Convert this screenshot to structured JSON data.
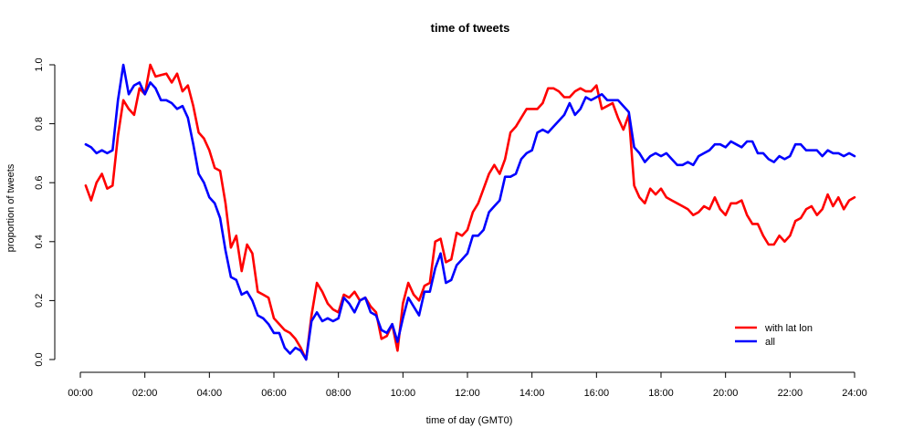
{
  "chart_data": {
    "type": "line",
    "title": "time of tweets",
    "xlabel": "time of day (GMT0)",
    "ylabel": "proportion of tweets",
    "xlim": [
      "00:00",
      "24:00"
    ],
    "ylim": [
      0,
      1
    ],
    "x_ticks": [
      "00:00",
      "02:00",
      "04:00",
      "06:00",
      "08:00",
      "10:00",
      "12:00",
      "14:00",
      "16:00",
      "18:00",
      "20:00",
      "22:00",
      "24:00"
    ],
    "y_ticks": [
      "0.0",
      "0.2",
      "0.4",
      "0.6",
      "0.8",
      "1.0"
    ],
    "grid": false,
    "legend_position": "bottom-right",
    "series": [
      {
        "name": "with lat lon",
        "color": "#ff0000",
        "points": [
          [
            "00:10",
            0.59
          ],
          [
            "00:20",
            0.54
          ],
          [
            "00:30",
            0.6
          ],
          [
            "00:40",
            0.63
          ],
          [
            "00:50",
            0.58
          ],
          [
            "01:00",
            0.59
          ],
          [
            "01:10",
            0.76
          ],
          [
            "01:20",
            0.88
          ],
          [
            "01:30",
            0.85
          ],
          [
            "01:40",
            0.83
          ],
          [
            "01:50",
            0.92
          ],
          [
            "02:00",
            0.9
          ],
          [
            "02:10",
            1.0
          ],
          [
            "02:20",
            0.96
          ],
          [
            "02:30",
            0.965
          ],
          [
            "02:40",
            0.97
          ],
          [
            "02:50",
            0.94
          ],
          [
            "03:00",
            0.97
          ],
          [
            "03:10",
            0.91
          ],
          [
            "03:20",
            0.93
          ],
          [
            "03:30",
            0.86
          ],
          [
            "03:40",
            0.77
          ],
          [
            "03:50",
            0.75
          ],
          [
            "04:00",
            0.71
          ],
          [
            "04:10",
            0.65
          ],
          [
            "04:20",
            0.64
          ],
          [
            "04:30",
            0.53
          ],
          [
            "04:40",
            0.38
          ],
          [
            "04:50",
            0.42
          ],
          [
            "05:00",
            0.3
          ],
          [
            "05:10",
            0.39
          ],
          [
            "05:20",
            0.36
          ],
          [
            "05:30",
            0.23
          ],
          [
            "05:40",
            0.22
          ],
          [
            "05:50",
            0.21
          ],
          [
            "06:00",
            0.14
          ],
          [
            "06:10",
            0.12
          ],
          [
            "06:20",
            0.1
          ],
          [
            "06:30",
            0.09
          ],
          [
            "06:40",
            0.07
          ],
          [
            "06:50",
            0.04
          ],
          [
            "07:00",
            0.0
          ],
          [
            "07:10",
            0.15
          ],
          [
            "07:20",
            0.26
          ],
          [
            "07:30",
            0.23
          ],
          [
            "07:40",
            0.19
          ],
          [
            "07:50",
            0.17
          ],
          [
            "08:00",
            0.16
          ],
          [
            "08:10",
            0.22
          ],
          [
            "08:20",
            0.21
          ],
          [
            "08:30",
            0.23
          ],
          [
            "08:40",
            0.2
          ],
          [
            "08:50",
            0.21
          ],
          [
            "09:00",
            0.18
          ],
          [
            "09:10",
            0.16
          ],
          [
            "09:20",
            0.07
          ],
          [
            "09:30",
            0.08
          ],
          [
            "09:40",
            0.12
          ],
          [
            "09:50",
            0.03
          ],
          [
            "10:00",
            0.19
          ],
          [
            "10:10",
            0.26
          ],
          [
            "10:20",
            0.22
          ],
          [
            "10:30",
            0.2
          ],
          [
            "10:40",
            0.25
          ],
          [
            "10:50",
            0.26
          ],
          [
            "11:00",
            0.4
          ],
          [
            "11:10",
            0.41
          ],
          [
            "11:20",
            0.33
          ],
          [
            "11:30",
            0.34
          ],
          [
            "11:40",
            0.43
          ],
          [
            "11:50",
            0.42
          ],
          [
            "12:00",
            0.44
          ],
          [
            "12:10",
            0.5
          ],
          [
            "12:20",
            0.53
          ],
          [
            "12:30",
            0.58
          ],
          [
            "12:40",
            0.63
          ],
          [
            "12:50",
            0.66
          ],
          [
            "13:00",
            0.63
          ],
          [
            "13:10",
            0.68
          ],
          [
            "13:20",
            0.77
          ],
          [
            "13:30",
            0.79
          ],
          [
            "13:40",
            0.82
          ],
          [
            "13:50",
            0.85
          ],
          [
            "14:00",
            0.85
          ],
          [
            "14:10",
            0.85
          ],
          [
            "14:20",
            0.87
          ],
          [
            "14:30",
            0.92
          ],
          [
            "14:40",
            0.92
          ],
          [
            "14:50",
            0.91
          ],
          [
            "15:00",
            0.89
          ],
          [
            "15:10",
            0.89
          ],
          [
            "15:20",
            0.91
          ],
          [
            "15:30",
            0.92
          ],
          [
            "15:40",
            0.91
          ],
          [
            "15:50",
            0.91
          ],
          [
            "16:00",
            0.93
          ],
          [
            "16:10",
            0.85
          ],
          [
            "16:20",
            0.86
          ],
          [
            "16:30",
            0.87
          ],
          [
            "16:40",
            0.82
          ],
          [
            "16:50",
            0.78
          ],
          [
            "17:00",
            0.83
          ],
          [
            "17:10",
            0.59
          ],
          [
            "17:20",
            0.55
          ],
          [
            "17:30",
            0.53
          ],
          [
            "17:40",
            0.58
          ],
          [
            "17:50",
            0.56
          ],
          [
            "18:00",
            0.58
          ],
          [
            "18:10",
            0.55
          ],
          [
            "18:20",
            0.54
          ],
          [
            "18:30",
            0.53
          ],
          [
            "18:40",
            0.52
          ],
          [
            "18:50",
            0.51
          ],
          [
            "19:00",
            0.49
          ],
          [
            "19:10",
            0.5
          ],
          [
            "19:20",
            0.52
          ],
          [
            "19:30",
            0.51
          ],
          [
            "19:40",
            0.55
          ],
          [
            "19:50",
            0.51
          ],
          [
            "20:00",
            0.49
          ],
          [
            "20:10",
            0.53
          ],
          [
            "20:20",
            0.53
          ],
          [
            "20:30",
            0.54
          ],
          [
            "20:40",
            0.49
          ],
          [
            "20:50",
            0.46
          ],
          [
            "21:00",
            0.46
          ],
          [
            "21:10",
            0.42
          ],
          [
            "21:20",
            0.39
          ],
          [
            "21:30",
            0.39
          ],
          [
            "21:40",
            0.42
          ],
          [
            "21:50",
            0.4
          ],
          [
            "22:00",
            0.42
          ],
          [
            "22:10",
            0.47
          ],
          [
            "22:20",
            0.48
          ],
          [
            "22:30",
            0.51
          ],
          [
            "22:40",
            0.52
          ],
          [
            "22:50",
            0.49
          ],
          [
            "23:00",
            0.51
          ],
          [
            "23:10",
            0.56
          ],
          [
            "23:20",
            0.52
          ],
          [
            "23:30",
            0.55
          ],
          [
            "23:40",
            0.51
          ],
          [
            "23:50",
            0.54
          ],
          [
            "24:00",
            0.55
          ]
        ]
      },
      {
        "name": "all",
        "color": "#0000ff",
        "points": [
          [
            "00:10",
            0.73
          ],
          [
            "00:20",
            0.72
          ],
          [
            "00:30",
            0.7
          ],
          [
            "00:40",
            0.71
          ],
          [
            "00:50",
            0.7
          ],
          [
            "01:00",
            0.71
          ],
          [
            "01:10",
            0.88
          ],
          [
            "01:20",
            1.0
          ],
          [
            "01:30",
            0.9
          ],
          [
            "01:40",
            0.93
          ],
          [
            "01:50",
            0.94
          ],
          [
            "02:00",
            0.9
          ],
          [
            "02:10",
            0.94
          ],
          [
            "02:20",
            0.92
          ],
          [
            "02:30",
            0.88
          ],
          [
            "02:40",
            0.88
          ],
          [
            "02:50",
            0.87
          ],
          [
            "03:00",
            0.85
          ],
          [
            "03:10",
            0.86
          ],
          [
            "03:20",
            0.82
          ],
          [
            "03:30",
            0.73
          ],
          [
            "03:40",
            0.63
          ],
          [
            "03:50",
            0.6
          ],
          [
            "04:00",
            0.55
          ],
          [
            "04:10",
            0.53
          ],
          [
            "04:20",
            0.48
          ],
          [
            "04:30",
            0.37
          ],
          [
            "04:40",
            0.28
          ],
          [
            "04:50",
            0.27
          ],
          [
            "05:00",
            0.22
          ],
          [
            "05:10",
            0.23
          ],
          [
            "05:20",
            0.2
          ],
          [
            "05:30",
            0.15
          ],
          [
            "05:40",
            0.14
          ],
          [
            "05:50",
            0.12
          ],
          [
            "06:00",
            0.09
          ],
          [
            "06:10",
            0.09
          ],
          [
            "06:20",
            0.04
          ],
          [
            "06:30",
            0.02
          ],
          [
            "06:40",
            0.04
          ],
          [
            "06:50",
            0.03
          ],
          [
            "07:00",
            0.0
          ],
          [
            "07:10",
            0.13
          ],
          [
            "07:20",
            0.16
          ],
          [
            "07:30",
            0.13
          ],
          [
            "07:40",
            0.14
          ],
          [
            "07:50",
            0.13
          ],
          [
            "08:00",
            0.14
          ],
          [
            "08:10",
            0.21
          ],
          [
            "08:20",
            0.19
          ],
          [
            "08:30",
            0.16
          ],
          [
            "08:40",
            0.2
          ],
          [
            "08:50",
            0.21
          ],
          [
            "09:00",
            0.16
          ],
          [
            "09:10",
            0.15
          ],
          [
            "09:20",
            0.1
          ],
          [
            "09:30",
            0.09
          ],
          [
            "09:40",
            0.12
          ],
          [
            "09:50",
            0.06
          ],
          [
            "10:00",
            0.14
          ],
          [
            "10:10",
            0.21
          ],
          [
            "10:20",
            0.18
          ],
          [
            "10:30",
            0.15
          ],
          [
            "10:40",
            0.23
          ],
          [
            "10:50",
            0.23
          ],
          [
            "11:00",
            0.31
          ],
          [
            "11:10",
            0.36
          ],
          [
            "11:20",
            0.26
          ],
          [
            "11:30",
            0.27
          ],
          [
            "11:40",
            0.32
          ],
          [
            "11:50",
            0.34
          ],
          [
            "12:00",
            0.36
          ],
          [
            "12:10",
            0.42
          ],
          [
            "12:20",
            0.42
          ],
          [
            "12:30",
            0.44
          ],
          [
            "12:40",
            0.5
          ],
          [
            "12:50",
            0.52
          ],
          [
            "13:00",
            0.54
          ],
          [
            "13:10",
            0.62
          ],
          [
            "13:20",
            0.62
          ],
          [
            "13:30",
            0.63
          ],
          [
            "13:40",
            0.68
          ],
          [
            "13:50",
            0.7
          ],
          [
            "14:00",
            0.71
          ],
          [
            "14:10",
            0.77
          ],
          [
            "14:20",
            0.78
          ],
          [
            "14:30",
            0.77
          ],
          [
            "14:40",
            0.79
          ],
          [
            "14:50",
            0.81
          ],
          [
            "15:00",
            0.83
          ],
          [
            "15:10",
            0.87
          ],
          [
            "15:20",
            0.83
          ],
          [
            "15:30",
            0.85
          ],
          [
            "15:40",
            0.89
          ],
          [
            "15:50",
            0.88
          ],
          [
            "16:00",
            0.89
          ],
          [
            "16:10",
            0.9
          ],
          [
            "16:20",
            0.88
          ],
          [
            "16:30",
            0.88
          ],
          [
            "16:40",
            0.88
          ],
          [
            "16:50",
            0.86
          ],
          [
            "17:00",
            0.84
          ],
          [
            "17:10",
            0.72
          ],
          [
            "17:20",
            0.7
          ],
          [
            "17:30",
            0.67
          ],
          [
            "17:40",
            0.69
          ],
          [
            "17:50",
            0.7
          ],
          [
            "18:00",
            0.69
          ],
          [
            "18:10",
            0.7
          ],
          [
            "18:20",
            0.68
          ],
          [
            "18:30",
            0.66
          ],
          [
            "18:40",
            0.66
          ],
          [
            "18:50",
            0.67
          ],
          [
            "19:00",
            0.66
          ],
          [
            "19:10",
            0.69
          ],
          [
            "19:20",
            0.7
          ],
          [
            "19:30",
            0.71
          ],
          [
            "19:40",
            0.73
          ],
          [
            "19:50",
            0.73
          ],
          [
            "20:00",
            0.72
          ],
          [
            "20:10",
            0.74
          ],
          [
            "20:20",
            0.73
          ],
          [
            "20:30",
            0.72
          ],
          [
            "20:40",
            0.74
          ],
          [
            "20:50",
            0.74
          ],
          [
            "21:00",
            0.7
          ],
          [
            "21:10",
            0.7
          ],
          [
            "21:20",
            0.68
          ],
          [
            "21:30",
            0.67
          ],
          [
            "21:40",
            0.69
          ],
          [
            "21:50",
            0.68
          ],
          [
            "22:00",
            0.69
          ],
          [
            "22:10",
            0.73
          ],
          [
            "22:20",
            0.73
          ],
          [
            "22:30",
            0.71
          ],
          [
            "22:40",
            0.71
          ],
          [
            "22:50",
            0.71
          ],
          [
            "23:00",
            0.69
          ],
          [
            "23:10",
            0.71
          ],
          [
            "23:20",
            0.7
          ],
          [
            "23:30",
            0.7
          ],
          [
            "23:40",
            0.69
          ],
          [
            "23:50",
            0.7
          ],
          [
            "24:00",
            0.69
          ]
        ]
      }
    ]
  }
}
